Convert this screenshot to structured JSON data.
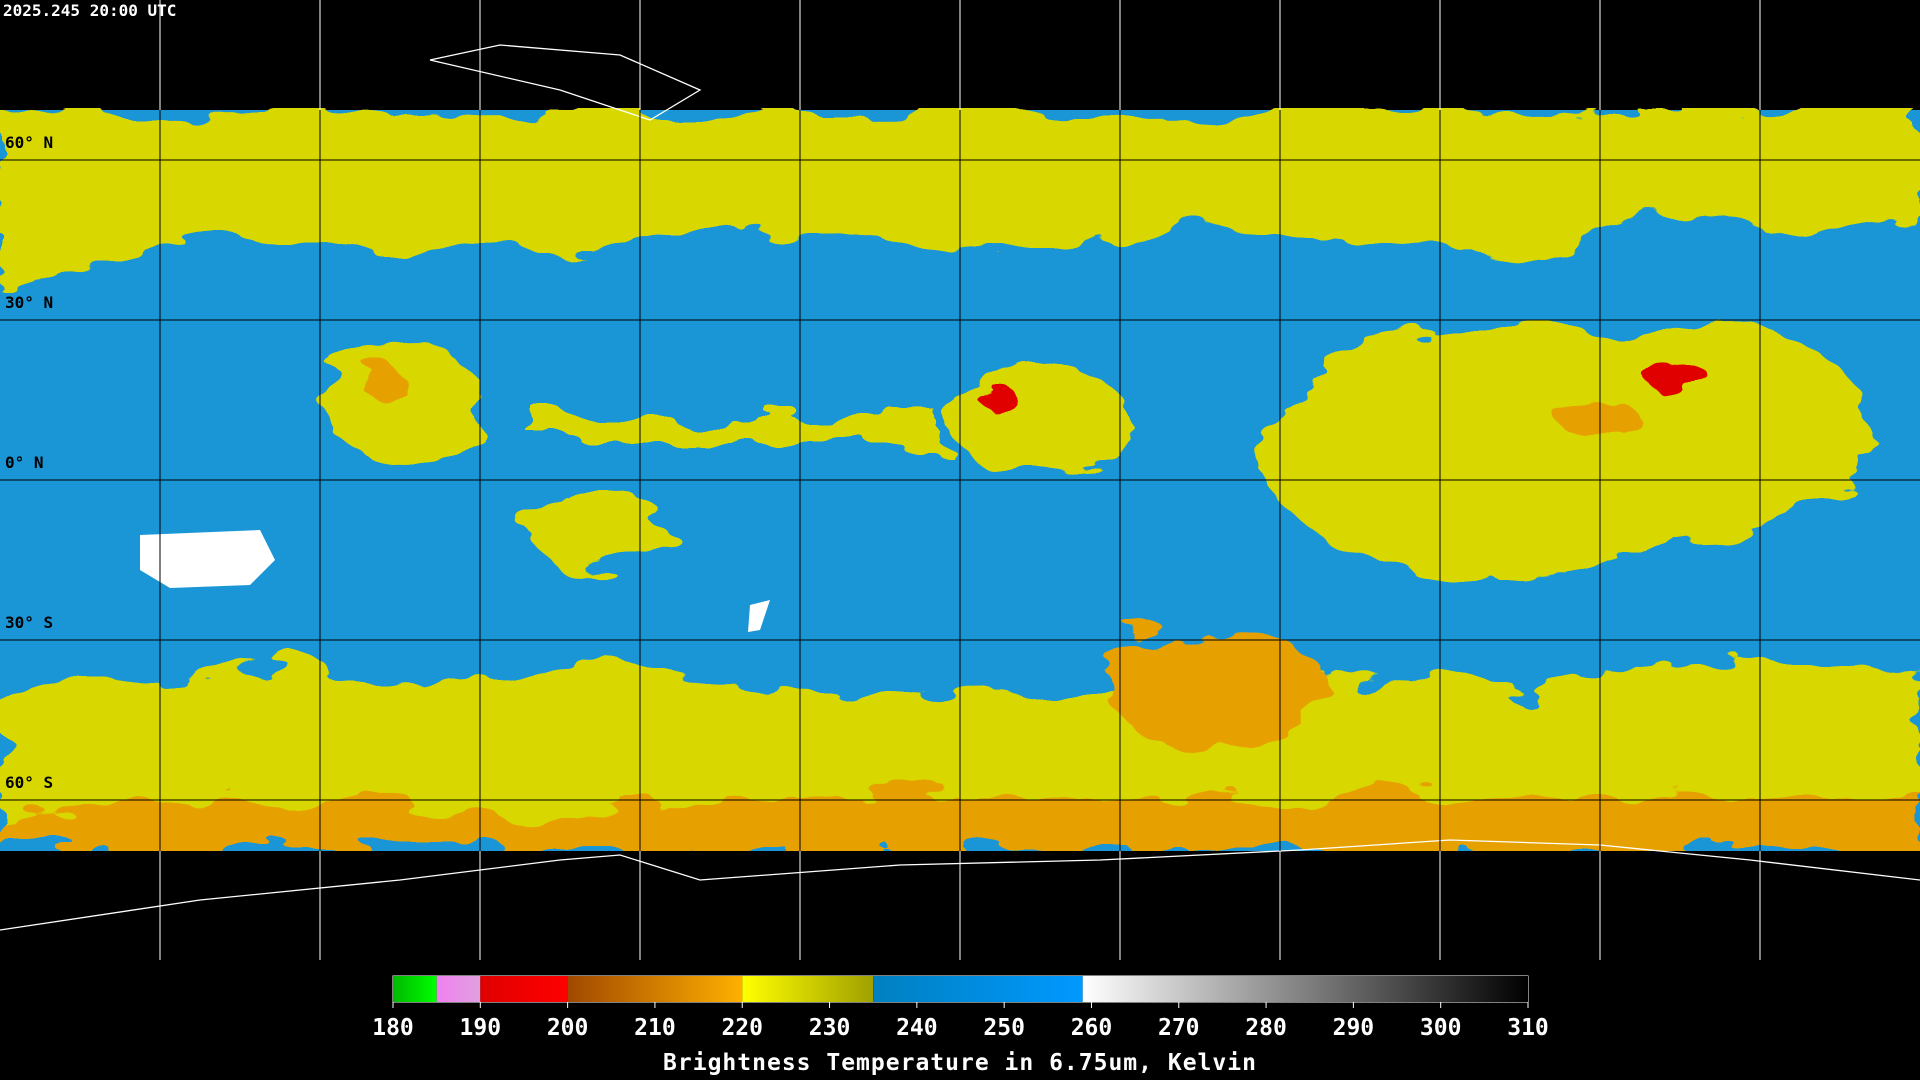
{
  "timestamp": "2025.245 20:00 UTC",
  "map": {
    "latitude": {
      "lim": [
        90,
        -90
      ],
      "ticks": [
        {
          "value": 60,
          "label": "60° N"
        },
        {
          "value": 30,
          "label": "30° N"
        },
        {
          "value": 0,
          "label": "0° N"
        },
        {
          "value": -30,
          "label": "30° S"
        },
        {
          "value": -60,
          "label": "60° S"
        }
      ]
    },
    "longitude": {
      "lim": [
        -180,
        180
      ],
      "ticks": [
        -150,
        -120,
        -90,
        -60,
        -30,
        0,
        30,
        60,
        90,
        120,
        150
      ]
    },
    "grid_color": "#000"
  },
  "colorbar": {
    "title": "Brightness Temperature in 6.75um, Kelvin",
    "lim": [
      180,
      310
    ],
    "ticks": [
      180,
      190,
      200,
      210,
      220,
      230,
      240,
      250,
      260,
      270,
      280,
      290,
      300,
      310
    ],
    "segments": [
      {
        "from": 180,
        "to": 185,
        "colors": [
          "#00b800",
          "#00ff00"
        ]
      },
      {
        "from": 185,
        "to": 190,
        "colors": [
          "#f080f0",
          "#e0a0e0"
        ]
      },
      {
        "from": 190,
        "to": 200,
        "colors": [
          "#e00000",
          "#ff0000"
        ]
      },
      {
        "from": 200,
        "to": 220,
        "colors": [
          "#a04800",
          "#ffb000"
        ]
      },
      {
        "from": 220,
        "to": 235,
        "colors": [
          "#ffff00",
          "#a0a000"
        ]
      },
      {
        "from": 235,
        "to": 259,
        "colors": [
          "#0080c0",
          "#0099ff"
        ]
      },
      {
        "from": 259,
        "to": 310,
        "colors": [
          "#ffffff",
          "#000000"
        ]
      }
    ]
  }
}
